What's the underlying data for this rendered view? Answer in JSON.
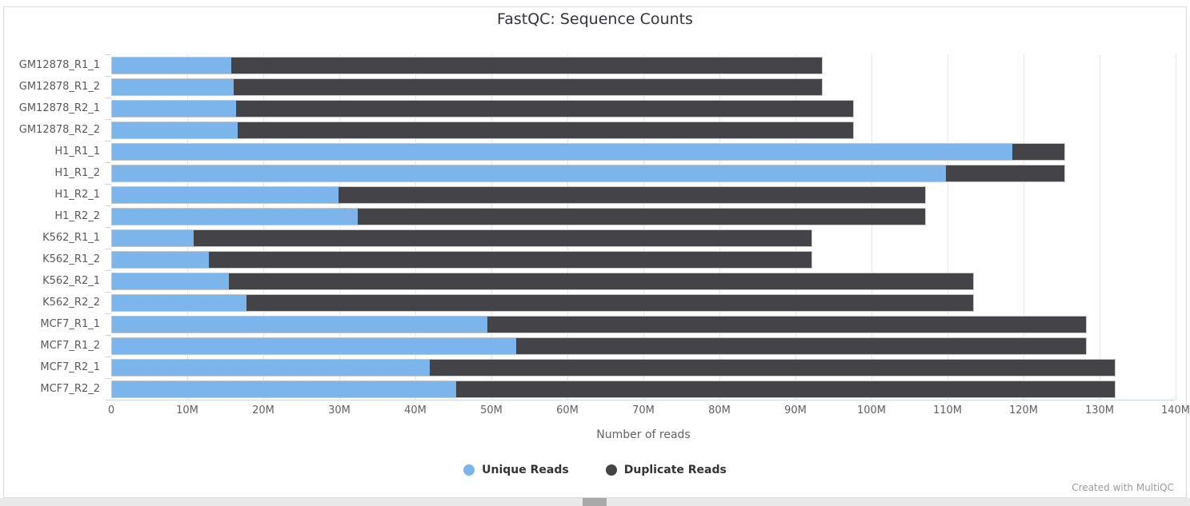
{
  "page": {
    "title": "FastQC: Sequence Counts",
    "footer": "Created with MultiQC"
  },
  "legend": {
    "items": [
      {
        "label": "Unique Reads",
        "color": "#7cb5ec"
      },
      {
        "label": "Duplicate Reads",
        "color": "#434348"
      }
    ]
  },
  "chart_data": {
    "type": "bar",
    "orientation": "horizontal",
    "stacked": true,
    "title": "FastQC: Sequence Counts",
    "xlabel": "Number of reads",
    "categories": [
      "GM12878_R1_1",
      "GM12878_R1_2",
      "GM12878_R2_1",
      "GM12878_R2_2",
      "H1_R1_1",
      "H1_R1_2",
      "H1_R2_1",
      "H1_R2_2",
      "K562_R1_1",
      "K562_R1_2",
      "K562_R2_1",
      "K562_R2_2",
      "MCF7_R1_1",
      "MCF7_R1_2",
      "MCF7_R2_1",
      "MCF7_R2_2"
    ],
    "series": [
      {
        "name": "Unique Reads",
        "color": "#7cb5ec",
        "values_millions": [
          15.7,
          16.0,
          16.3,
          16.6,
          118.6,
          109.9,
          29.8,
          32.4,
          10.8,
          12.8,
          15.4,
          17.7,
          49.5,
          53.2,
          41.9,
          45.3
        ]
      },
      {
        "name": "Duplicate Reads",
        "color": "#434348",
        "values_millions": [
          77.9,
          77.6,
          81.4,
          81.1,
          6.9,
          15.6,
          77.4,
          74.8,
          81.4,
          79.4,
          98.1,
          95.8,
          78.8,
          75.1,
          90.2,
          86.8
        ]
      }
    ],
    "totals_millions": [
      93.6,
      93.6,
      97.7,
      97.7,
      125.5,
      125.5,
      107.2,
      107.2,
      92.2,
      92.2,
      113.5,
      113.5,
      128.3,
      128.3,
      132.1,
      132.1
    ],
    "xlim_millions": [
      0,
      140
    ],
    "x_ticks": [
      "0",
      "10M",
      "20M",
      "30M",
      "40M",
      "50M",
      "60M",
      "70M",
      "80M",
      "90M",
      "100M",
      "110M",
      "120M",
      "130M",
      "140M"
    ],
    "grid": true,
    "legend_position": "bottom"
  }
}
